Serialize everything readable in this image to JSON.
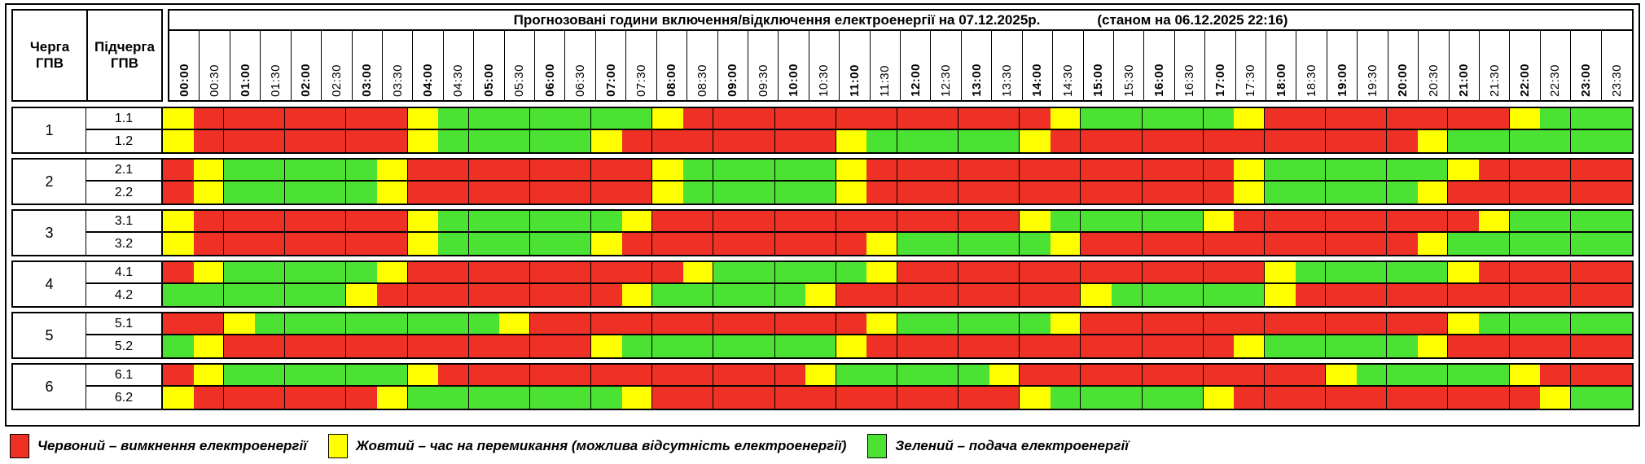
{
  "header": {
    "queue_col": "Черга ГПВ",
    "subqueue_col": "Підчерга ГПВ",
    "title": "Прогнозовані години включення/відключення електроенергії на 07.12.2025р.",
    "status": "(станом на 06.12.2025 22:16)"
  },
  "times": [
    "00:00",
    "00:30",
    "01:00",
    "01:30",
    "02:00",
    "02:30",
    "03:00",
    "03:30",
    "04:00",
    "04:30",
    "05:00",
    "05:30",
    "06:00",
    "06:30",
    "07:00",
    "07:30",
    "08:00",
    "08:30",
    "09:00",
    "09:30",
    "10:00",
    "10:30",
    "11:00",
    "11:30",
    "12:00",
    "12:30",
    "13:00",
    "13:30",
    "14:00",
    "14:30",
    "15:00",
    "15:30",
    "16:00",
    "16:30",
    "17:00",
    "17:30",
    "18:00",
    "18:30",
    "19:00",
    "19:30",
    "20:00",
    "20:30",
    "21:00",
    "21:30",
    "22:00",
    "22:30",
    "23:00",
    "23:30"
  ],
  "colors": {
    "R": "#EE3124",
    "Y": "#FFFF00",
    "G": "#4CE234"
  },
  "groups": [
    {
      "queue": "1",
      "rows": [
        {
          "label": "1.1",
          "slots": "YRRRRRRRYGGGGGGGYRRRRRRRRRRRRYGGGGGYRRRRRRRRYGGG"
        },
        {
          "label": "1.2",
          "slots": "YRRRRRRRYGGGGGYRRRRRRRYGGGGGYRRRRRRRRRRRRYGGGGGG"
        }
      ]
    },
    {
      "queue": "2",
      "rows": [
        {
          "label": "2.1",
          "slots": "RYGGGGGYRRRRRRRRYGGGGGYRRRRRRRRRRRRYGGGGGGYRRRRR"
        },
        {
          "label": "2.2",
          "slots": "RYGGGGGYRRRRRRRRYGGGGGYRRRRRRRRRRRRYGGGGGYRRRRRR"
        }
      ]
    },
    {
      "queue": "3",
      "rows": [
        {
          "label": "3.1",
          "slots": "YRRRRRRRYGGGGGGYRRRRRRRRRRRRYGGGGGYRRRRRRRRYGGGG"
        },
        {
          "label": "3.2",
          "slots": "YRRRRRRRYGGGGGYRRRRRRRRYGGGGGYRRRRRRRRRRRYGGGGGG"
        }
      ]
    },
    {
      "queue": "4",
      "rows": [
        {
          "label": "4.1",
          "slots": "RYGGGGGYRRRRRRRRRYGGGGGYRRRRRRRRRRRRYGGGGGYRRRRR"
        },
        {
          "label": "4.2",
          "slots": "GGGGGGYRRRRRRRRYGGGGGYRRRRRRRRYGGGGGYRRRRRRRRRRR"
        }
      ]
    },
    {
      "queue": "5",
      "rows": [
        {
          "label": "5.1",
          "slots": "RRYGGGGGGGGYRRRRRRRRRRRYGGGGGYRRRRRRRRRRRRYGGGGG"
        },
        {
          "label": "5.2",
          "slots": "GYRRRRRRRRRRRRYGGGGGGGYRRRRRRRRRRRRYGGGGGYRRRRRR"
        }
      ]
    },
    {
      "queue": "6",
      "rows": [
        {
          "label": "6.1",
          "slots": "RYGGGGGGYRRRRRRRRRRRRYGGGGGYRRRRRRRRRRYGGGGGYRRR"
        },
        {
          "label": "6.2",
          "slots": "YRRRRRRYGGGGGGGYRRRRRRRRRRRRYGGGGGYRRRRRRRRRRYGG"
        }
      ]
    }
  ],
  "legend": [
    {
      "key": "R",
      "color": "#EE3124",
      "label": "Червоний – вимкнення електроенергії"
    },
    {
      "key": "Y",
      "color": "#FFFF00",
      "label": "Жовтий – час на перемикання (можлива відсутність електроенергії)"
    },
    {
      "key": "G",
      "color": "#4CE234",
      "label": "Зелений – подача електроенергії"
    }
  ]
}
